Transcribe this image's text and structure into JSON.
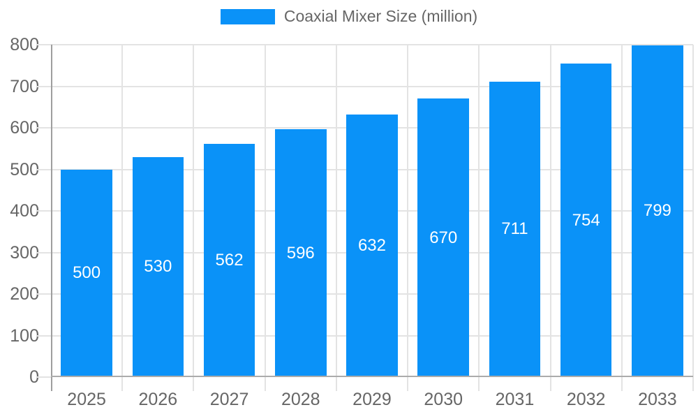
{
  "chart_data": {
    "type": "bar",
    "title": "Coaxial Mixer Size (million)",
    "categories": [
      "2025",
      "2026",
      "2027",
      "2028",
      "2029",
      "2030",
      "2031",
      "2032",
      "2033"
    ],
    "values": [
      500,
      530,
      562,
      596,
      632,
      670,
      711,
      754,
      799
    ],
    "value_labels": [
      "500",
      "530",
      "562",
      "596",
      "632",
      "670",
      "711",
      "754",
      "799"
    ],
    "xlabel": "",
    "ylabel": "",
    "ylim": [
      0,
      800
    ],
    "y_tick_step": 100,
    "y_tick_labels": [
      "0",
      "100",
      "200",
      "300",
      "400",
      "500",
      "600",
      "700",
      "800"
    ],
    "grid": true,
    "legend_position": "top",
    "colors": {
      "bar": "#0a92f8",
      "value_label": "#ffffff",
      "tick_label": "#666666",
      "grid_line": "#e3e3e3",
      "axis_line": "#9e9e9e"
    }
  }
}
